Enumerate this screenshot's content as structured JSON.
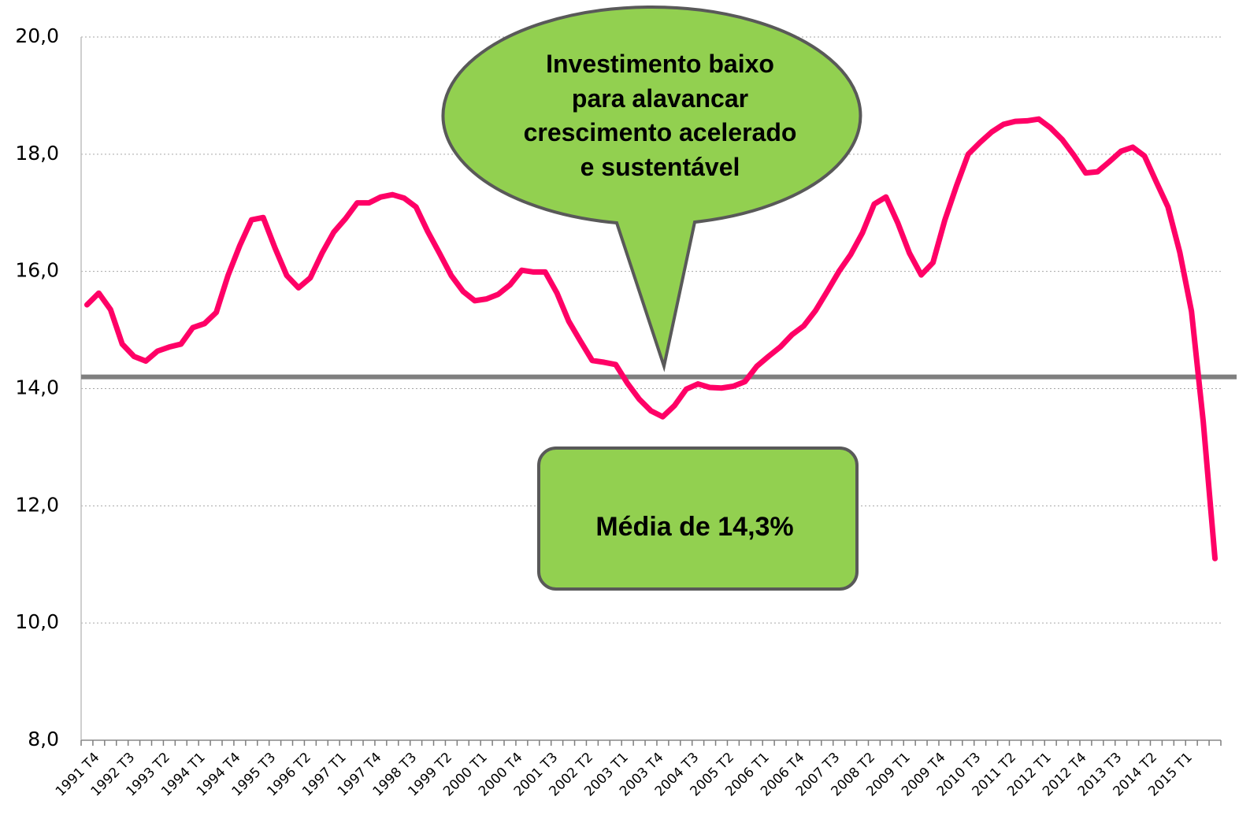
{
  "chart_data": {
    "type": "line",
    "categories": [
      "1991 T4",
      null,
      null,
      "1992 T3",
      null,
      null,
      "1993 T2",
      null,
      null,
      "1994 T1",
      null,
      null,
      "1994 T4",
      null,
      null,
      "1995 T3",
      null,
      null,
      "1996 T2",
      null,
      null,
      "1997 T1",
      null,
      null,
      "1997 T4",
      null,
      null,
      "1998 T3",
      null,
      null,
      "1999 T2",
      null,
      null,
      "2000 T1",
      null,
      null,
      "2000 T4",
      null,
      null,
      "2001 T3",
      null,
      null,
      "2002 T2",
      null,
      null,
      "2003 T1",
      null,
      null,
      "2003 T4",
      null,
      null,
      "2004 T3",
      null,
      null,
      "2005 T2",
      null,
      null,
      "2006 T1",
      null,
      null,
      "2006 T4",
      null,
      null,
      "2007 T3",
      null,
      null,
      "2008 T2",
      null,
      null,
      "2009 T1",
      null,
      null,
      "2009 T4",
      null,
      null,
      "2010 T3",
      null,
      null,
      "2011 T2",
      null,
      null,
      "2012 T1",
      null,
      null,
      "2012 T4",
      null,
      null,
      "2013 T3",
      null,
      null,
      "2014 T2",
      null,
      null,
      "2015 T1",
      null,
      null,
      null
    ],
    "series": [
      {
        "color": "#ff0066",
        "values": [
          15.43,
          15.63,
          15.35,
          14.76,
          14.55,
          14.47,
          14.64,
          14.71,
          14.76,
          15.04,
          15.11,
          15.3,
          15.93,
          16.44,
          16.88,
          16.92,
          16.4,
          15.93,
          15.72,
          15.89,
          16.31,
          16.67,
          16.9,
          17.17,
          17.17,
          17.27,
          17.31,
          17.25,
          17.1,
          16.68,
          16.31,
          15.93,
          15.66,
          15.5,
          15.53,
          15.61,
          15.77,
          16.02,
          15.99,
          15.99,
          15.63,
          15.15,
          14.81,
          14.48,
          14.45,
          14.41,
          14.09,
          13.82,
          13.62,
          13.52,
          13.71,
          13.99,
          14.08,
          14.02,
          14.01,
          14.04,
          14.12,
          14.38,
          14.55,
          14.71,
          14.92,
          15.07,
          15.33,
          15.66,
          16.0,
          16.29,
          16.66,
          17.15,
          17.27,
          16.83,
          16.31,
          15.94,
          16.15,
          16.87,
          17.46,
          18.0,
          18.2,
          18.38,
          18.51,
          18.56,
          18.57,
          18.6,
          18.45,
          18.25,
          17.98,
          17.68,
          17.7,
          17.87,
          18.05,
          18.12,
          17.97,
          17.53,
          17.1,
          16.33,
          15.32,
          13.44,
          11.1
        ]
      }
    ],
    "ylim": [
      8,
      20
    ],
    "yticks": [
      {
        "value": 8,
        "label": "8,0"
      },
      {
        "value": 10,
        "label": "10,0"
      },
      {
        "value": 12,
        "label": "12,0"
      },
      {
        "value": 14,
        "label": "14,0"
      },
      {
        "value": 16,
        "label": "16,0"
      },
      {
        "value": 18,
        "label": "18,0"
      },
      {
        "value": 20,
        "label": "20,0"
      }
    ],
    "grid": true,
    "reference_line": {
      "value": 14.2,
      "color": "#7f7f7f"
    },
    "annotations": {
      "callout": [
        "Investimento baixo",
        "para alavancar",
        "crescimento acelerado",
        "e sustentável"
      ],
      "box": "Média de 14,3%"
    }
  }
}
